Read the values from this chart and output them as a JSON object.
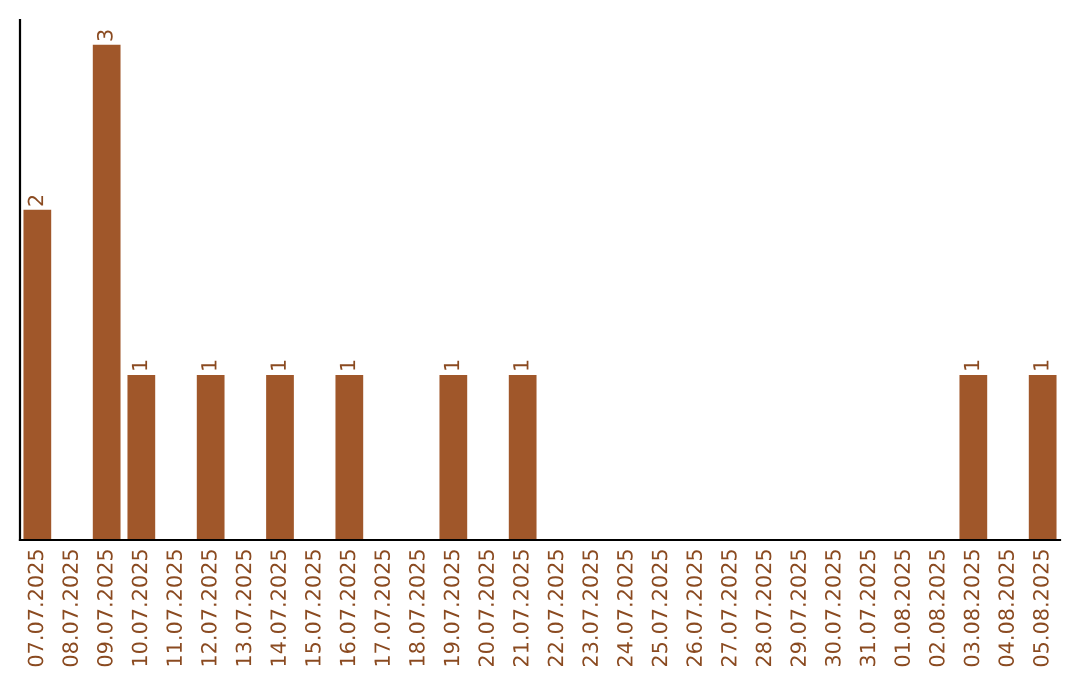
{
  "chart_data": {
    "type": "bar",
    "categories": [
      "07.07.2025",
      "08.07.2025",
      "09.07.2025",
      "10.07.2025",
      "11.07.2025",
      "12.07.2025",
      "13.07.2025",
      "14.07.2025",
      "15.07.2025",
      "16.07.2025",
      "17.07.2025",
      "18.07.2025",
      "19.07.2025",
      "20.07.2025",
      "21.07.2025",
      "22.07.2025",
      "23.07.2025",
      "24.07.2025",
      "25.07.2025",
      "26.07.2025",
      "27.07.2025",
      "28.07.2025",
      "29.07.2025",
      "30.07.2025",
      "31.07.2025",
      "01.08.2025",
      "02.08.2025",
      "03.08.2025",
      "04.08.2025",
      "05.08.2025"
    ],
    "values": [
      2,
      0,
      3,
      1,
      0,
      1,
      0,
      1,
      0,
      1,
      0,
      0,
      1,
      0,
      1,
      0,
      0,
      0,
      0,
      0,
      0,
      0,
      0,
      0,
      0,
      0,
      0,
      1,
      0,
      1
    ],
    "value_labels": [
      "2",
      null,
      "3",
      "1",
      null,
      "1",
      null,
      "1",
      null,
      "1",
      null,
      null,
      "1",
      null,
      "1",
      null,
      null,
      null,
      null,
      null,
      null,
      null,
      null,
      null,
      null,
      null,
      null,
      "1",
      null,
      "1"
    ],
    "color": "#a0572a",
    "tick_labels": "x",
    "grid": false,
    "legend": false
  }
}
